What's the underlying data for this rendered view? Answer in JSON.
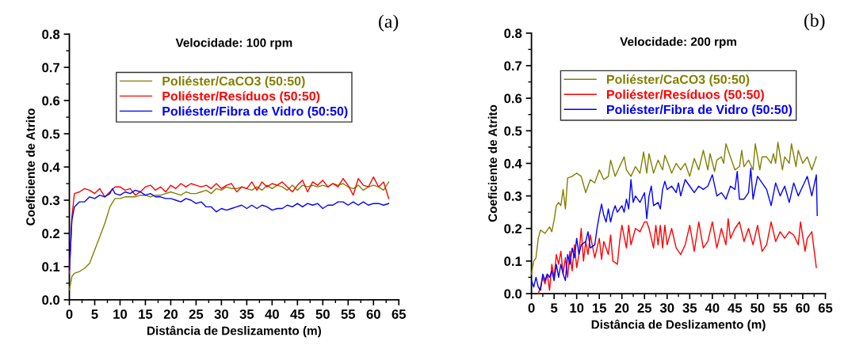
{
  "chart_data": [
    {
      "type": "line",
      "title": "Velocidade: 100 rpm",
      "xlabel": "Distância de Deslizamento (m)",
      "ylabel": "Coeficiente de Atrito",
      "annotations": [
        "(a)"
      ],
      "xlim": [
        0,
        65
      ],
      "ylim": [
        0,
        0.8
      ],
      "xticks": [
        0,
        5,
        10,
        15,
        20,
        25,
        30,
        35,
        40,
        45,
        50,
        55,
        60,
        65
      ],
      "yticks": [
        {
          "value": 0,
          "label": "0.0"
        },
        0.1,
        0.2,
        0.3,
        0.4,
        0.5,
        0.6,
        0.7,
        0.8
      ],
      "grid": false,
      "legend": "top",
      "marker": "none",
      "line_style": "solid",
      "series": [
        {
          "name": "Poliéster/CaCO3 (50:50)",
          "color": "#808000",
          "x": [
            0,
            0.5,
            1,
            2,
            3,
            4,
            5,
            6,
            7,
            8,
            9,
            10,
            11,
            12,
            13,
            14,
            15,
            16,
            17,
            18,
            19,
            20,
            21,
            22,
            23,
            24,
            25,
            26,
            27,
            28,
            29,
            30,
            31,
            32,
            33,
            34,
            35,
            36,
            37,
            38,
            39,
            40,
            41,
            42,
            43,
            44,
            45,
            46,
            47,
            48,
            49,
            50,
            51,
            52,
            53,
            54,
            55,
            56,
            57,
            58,
            59,
            60,
            61,
            62,
            63
          ],
          "values": [
            0.03,
            0.07,
            0.08,
            0.085,
            0.095,
            0.11,
            0.15,
            0.19,
            0.23,
            0.28,
            0.305,
            0.305,
            0.31,
            0.31,
            0.31,
            0.315,
            0.315,
            0.31,
            0.315,
            0.315,
            0.32,
            0.325,
            0.32,
            0.315,
            0.325,
            0.32,
            0.32,
            0.325,
            0.33,
            0.32,
            0.335,
            0.33,
            0.34,
            0.335,
            0.335,
            0.34,
            0.335,
            0.33,
            0.34,
            0.33,
            0.345,
            0.335,
            0.345,
            0.34,
            0.33,
            0.345,
            0.33,
            0.345,
            0.34,
            0.345,
            0.34,
            0.345,
            0.34,
            0.35,
            0.345,
            0.35,
            0.34,
            0.335,
            0.345,
            0.33,
            0.34,
            0.345,
            0.34,
            0.33,
            0.355
          ]
        },
        {
          "name": "Poliéster/Resíduos (50:50)",
          "color": "#ff0000",
          "x": [
            0,
            0.5,
            1,
            2,
            3,
            4,
            5,
            6,
            7,
            8,
            9,
            10,
            11,
            12,
            13,
            14,
            15,
            16,
            17,
            18,
            19,
            20,
            21,
            22,
            23,
            24,
            25,
            26,
            27,
            28,
            29,
            30,
            31,
            32,
            33,
            34,
            35,
            36,
            37,
            38,
            39,
            40,
            41,
            42,
            43,
            44,
            45,
            46,
            47,
            48,
            49,
            50,
            51,
            52,
            53,
            54,
            55,
            56,
            57,
            58,
            59,
            60,
            61,
            62,
            63
          ],
          "values": [
            0.08,
            0.25,
            0.32,
            0.325,
            0.335,
            0.33,
            0.32,
            0.335,
            0.31,
            0.325,
            0.34,
            0.34,
            0.33,
            0.335,
            0.315,
            0.325,
            0.34,
            0.345,
            0.33,
            0.34,
            0.325,
            0.345,
            0.335,
            0.35,
            0.34,
            0.35,
            0.345,
            0.34,
            0.345,
            0.335,
            0.35,
            0.335,
            0.345,
            0.35,
            0.325,
            0.34,
            0.335,
            0.355,
            0.33,
            0.355,
            0.34,
            0.35,
            0.345,
            0.355,
            0.34,
            0.325,
            0.345,
            0.36,
            0.325,
            0.355,
            0.345,
            0.36,
            0.34,
            0.35,
            0.34,
            0.365,
            0.345,
            0.315,
            0.365,
            0.345,
            0.34,
            0.37,
            0.34,
            0.355,
            0.305
          ]
        },
        {
          "name": "Poliéster/Fibra de Vidro (50:50)",
          "color": "#0000ff",
          "x": [
            0,
            0.5,
            1,
            2,
            3,
            4,
            5,
            6,
            7,
            8,
            8.5,
            9,
            10,
            11,
            12,
            13,
            14,
            15,
            16,
            17,
            18,
            19,
            20,
            21,
            22,
            23,
            24,
            25,
            26,
            27,
            28,
            29,
            30,
            31,
            32,
            33,
            34,
            35,
            36,
            37,
            38,
            39,
            40,
            41,
            42,
            43,
            44,
            45,
            46,
            47,
            48,
            49,
            50,
            51,
            52,
            53,
            54,
            55,
            56,
            57,
            58,
            59,
            60,
            61,
            62,
            63
          ],
          "values": [
            0.09,
            0.24,
            0.28,
            0.295,
            0.295,
            0.31,
            0.305,
            0.315,
            0.31,
            0.32,
            0.335,
            0.32,
            0.315,
            0.325,
            0.32,
            0.33,
            0.325,
            0.315,
            0.32,
            0.31,
            0.31,
            0.305,
            0.305,
            0.3,
            0.295,
            0.305,
            0.3,
            0.29,
            0.295,
            0.28,
            0.28,
            0.265,
            0.275,
            0.27,
            0.275,
            0.28,
            0.285,
            0.275,
            0.285,
            0.275,
            0.285,
            0.28,
            0.27,
            0.275,
            0.275,
            0.285,
            0.28,
            0.29,
            0.28,
            0.29,
            0.285,
            0.29,
            0.275,
            0.285,
            0.285,
            0.295,
            0.295,
            0.285,
            0.295,
            0.285,
            0.295,
            0.285,
            0.29,
            0.29,
            0.285,
            0.29
          ]
        }
      ]
    },
    {
      "type": "line",
      "title": "Velocidade: 200 rpm",
      "xlabel": "Distância de Deslizamento (m)",
      "ylabel": "Coeficiente de Atrito",
      "annotations": [
        "(b)"
      ],
      "xlim": [
        0,
        65
      ],
      "ylim": [
        0,
        0.8
      ],
      "xticks": [
        0,
        5,
        10,
        15,
        20,
        25,
        30,
        35,
        40,
        45,
        50,
        55,
        60,
        65
      ],
      "yticks": [
        {
          "value": 0,
          "label": "0.0"
        },
        0.1,
        0.2,
        0.3,
        0.4,
        0.5,
        0.6,
        0.7,
        0.8
      ],
      "grid": false,
      "legend": "top",
      "marker": "none",
      "line_style": "solid",
      "series": [
        {
          "name": "Poliéster/CaCO3 (50:50)",
          "color": "#808000",
          "x": [
            0,
            0.5,
            1,
            1.5,
            2,
            3,
            4,
            4.5,
            5,
            5.5,
            6,
            6.5,
            7,
            7.5,
            8,
            9,
            10,
            11,
            12,
            13,
            14,
            15,
            16,
            17,
            17.5,
            18.5,
            19.5,
            20.5,
            21,
            22,
            23,
            24,
            24.8,
            25.5,
            26,
            27,
            28,
            29,
            29.5,
            30.5,
            31,
            32,
            33,
            34,
            35,
            36,
            37,
            38,
            39,
            39.5,
            40.5,
            41,
            42,
            42.5,
            43,
            44,
            45,
            46,
            46.5,
            47,
            48,
            49,
            49.5,
            50.5,
            51,
            52,
            53,
            53.5,
            54,
            54.5,
            55.5,
            56,
            57,
            57.5,
            58.5,
            59,
            60,
            61,
            62,
            63
          ],
          "values": [
            0.06,
            0.1,
            0.11,
            0.17,
            0.195,
            0.185,
            0.205,
            0.19,
            0.225,
            0.27,
            0.28,
            0.27,
            0.32,
            0.26,
            0.355,
            0.36,
            0.37,
            0.36,
            0.31,
            0.35,
            0.34,
            0.38,
            0.35,
            0.36,
            0.41,
            0.36,
            0.39,
            0.42,
            0.38,
            0.36,
            0.39,
            0.37,
            0.435,
            0.37,
            0.43,
            0.37,
            0.41,
            0.38,
            0.425,
            0.39,
            0.37,
            0.4,
            0.38,
            0.4,
            0.36,
            0.415,
            0.38,
            0.44,
            0.38,
            0.43,
            0.375,
            0.41,
            0.42,
            0.4,
            0.46,
            0.42,
            0.38,
            0.39,
            0.44,
            0.39,
            0.41,
            0.38,
            0.46,
            0.38,
            0.42,
            0.42,
            0.4,
            0.43,
            0.4,
            0.465,
            0.38,
            0.42,
            0.4,
            0.46,
            0.39,
            0.44,
            0.4,
            0.42,
            0.38,
            0.42
          ]
        },
        {
          "name": "Poliéster/Resíduos (50:50)",
          "color": "#ff0000",
          "x": [
            1.5,
            2,
            2.5,
            3,
            3.5,
            4,
            4.5,
            5,
            5.5,
            6,
            6.5,
            7,
            7.5,
            8,
            8.5,
            9,
            9.5,
            10,
            10.5,
            11,
            11.5,
            12,
            12.5,
            13,
            14,
            15,
            15.5,
            16,
            17,
            17.5,
            18,
            19,
            19.5,
            20,
            21,
            21.5,
            22,
            23,
            24,
            25,
            25.5,
            26,
            27,
            27.5,
            28,
            28.5,
            29,
            29.5,
            30,
            31,
            32,
            33,
            34,
            35,
            36,
            37,
            38,
            39,
            40,
            41,
            42,
            43,
            43.5,
            44,
            45,
            46,
            47,
            48,
            49,
            50,
            51,
            52,
            53,
            54,
            55,
            56,
            57,
            58,
            59,
            59.5,
            60.5,
            61,
            62,
            63
          ],
          "values": [
            0.0,
            0.02,
            0.05,
            0.03,
            0.06,
            0.01,
            0.09,
            0.05,
            0.12,
            0.09,
            0.13,
            0.06,
            0.11,
            0.05,
            0.13,
            0.07,
            0.15,
            0.08,
            0.12,
            0.2,
            0.1,
            0.16,
            0.12,
            0.18,
            0.11,
            0.17,
            0.105,
            0.16,
            0.12,
            0.18,
            0.1,
            0.09,
            0.16,
            0.21,
            0.14,
            0.21,
            0.15,
            0.2,
            0.19,
            0.22,
            0.22,
            0.2,
            0.14,
            0.21,
            0.15,
            0.21,
            0.14,
            0.21,
            0.15,
            0.2,
            0.14,
            0.12,
            0.15,
            0.21,
            0.13,
            0.22,
            0.14,
            0.16,
            0.22,
            0.14,
            0.2,
            0.15,
            0.23,
            0.17,
            0.2,
            0.22,
            0.16,
            0.2,
            0.15,
            0.21,
            0.13,
            0.15,
            0.22,
            0.16,
            0.19,
            0.17,
            0.19,
            0.18,
            0.15,
            0.22,
            0.13,
            0.17,
            0.19,
            0.08
          ]
        },
        {
          "name": "Poliéster/Fibra de Vidro (50:50)",
          "color": "#0000ff",
          "x": [
            0,
            0.5,
            1,
            1.5,
            2,
            2.5,
            3,
            3.5,
            4,
            4.5,
            5,
            5.5,
            6,
            6.5,
            7,
            7.5,
            8,
            8.5,
            9,
            9.5,
            10,
            10.5,
            11,
            12,
            12.5,
            13,
            14,
            14.5,
            15,
            15.5,
            16,
            16.5,
            17,
            17.5,
            18,
            18.5,
            19,
            20,
            20.5,
            21,
            21.5,
            22,
            22.5,
            23,
            24,
            25,
            25.5,
            26,
            26.5,
            27,
            28,
            28.5,
            29,
            29.5,
            30,
            31,
            32,
            32.5,
            33,
            34,
            35,
            36,
            37,
            38,
            39,
            40,
            41,
            42,
            43,
            44,
            45,
            45.5,
            46,
            47,
            48,
            48.5,
            49,
            50,
            51,
            52,
            53,
            54,
            55,
            56,
            57,
            58,
            59,
            60,
            61,
            62,
            63,
            63.2
          ],
          "values": [
            0.04,
            0.02,
            0.05,
            0.02,
            0.01,
            0.06,
            0.04,
            0.06,
            0.05,
            0.07,
            0.04,
            0.09,
            0.05,
            0.09,
            0.06,
            0.04,
            0.12,
            0.09,
            0.14,
            0.11,
            0.17,
            0.12,
            0.15,
            0.16,
            0.19,
            0.14,
            0.15,
            0.2,
            0.24,
            0.275,
            0.24,
            0.22,
            0.26,
            0.22,
            0.25,
            0.27,
            0.25,
            0.27,
            0.25,
            0.29,
            0.26,
            0.35,
            0.28,
            0.3,
            0.28,
            0.31,
            0.23,
            0.3,
            0.33,
            0.27,
            0.28,
            0.26,
            0.32,
            0.345,
            0.32,
            0.33,
            0.31,
            0.34,
            0.3,
            0.35,
            0.33,
            0.31,
            0.33,
            0.32,
            0.33,
            0.365,
            0.3,
            0.31,
            0.29,
            0.33,
            0.32,
            0.375,
            0.29,
            0.29,
            0.31,
            0.385,
            0.29,
            0.36,
            0.34,
            0.32,
            0.27,
            0.34,
            0.3,
            0.33,
            0.28,
            0.34,
            0.3,
            0.33,
            0.36,
            0.3,
            0.365,
            0.24
          ]
        }
      ]
    }
  ]
}
